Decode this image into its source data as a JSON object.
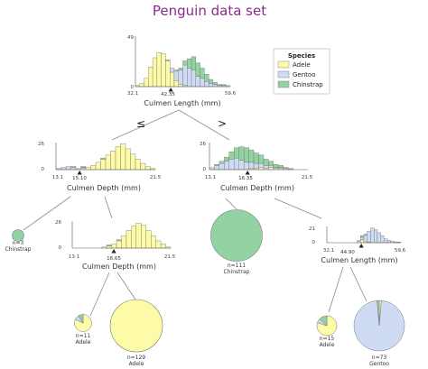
{
  "title": "Penguin data set",
  "colors": {
    "Adele": "#fdfaa8",
    "Gentoo": "#cfdbf3",
    "Chinstrap": "#93d3a3",
    "edge": "#8a8a8a",
    "axis": "#555555",
    "split_marker": "#222222",
    "title": "#8e2a8e"
  },
  "legend": {
    "title": "Species",
    "items": [
      "Adele",
      "Gentoo",
      "Chinstrap"
    ]
  },
  "edge_labels": {
    "left": "≤",
    "right": ">"
  },
  "root": {
    "feature": "Culmen Length (mm)",
    "ymax": "49",
    "ymin": "0",
    "xmin": "32.1",
    "split": "42.35",
    "xmax": "59.6"
  },
  "left": {
    "feature": "Culmen Depth (mm)",
    "ymax": "26",
    "ymin": "0",
    "xmin": "13.1",
    "split": "15.10",
    "xmax": "21.5"
  },
  "right": {
    "feature": "Culmen Depth (mm)",
    "ymax": "26",
    "ymin": "0",
    "xmin": "13.1",
    "split": "16.35",
    "xmax": "21.5"
  },
  "left_right": {
    "feature": "Culmen Depth (mm)",
    "ymax": "26",
    "ymin": "0",
    "xmin": "13.1",
    "split": "16.65",
    "xmax": "21.5"
  },
  "right_right": {
    "feature": "Culmen Length (mm)",
    "ymax": "21",
    "ymin": "0",
    "xmin": "32.1",
    "split": "44.90",
    "xmax": "59.6"
  },
  "leaves": {
    "chinstrap_small": {
      "n": "n=3",
      "label": "Chinstrap"
    },
    "chinstrap_big": {
      "n": "n=111",
      "label": "Chinstrap"
    },
    "adele_small": {
      "n": "n=11",
      "label": "Adele"
    },
    "adele_big": {
      "n": "n=129",
      "label": "Adele"
    },
    "adele_mix": {
      "n": "n=15",
      "label": "Adele"
    },
    "gentoo": {
      "n": "n=73",
      "label": "Gentoo"
    }
  },
  "chart_data": [
    {
      "type": "bar",
      "node": "root",
      "xlabel": "Culmen Length (mm)",
      "xlim": [
        32.1,
        59.6
      ],
      "ylim": [
        0,
        49
      ],
      "split": 42.35,
      "bin_width": 1.25,
      "series": [
        {
          "name": "Adele",
          "values": [
            1,
            3,
            8,
            19,
            28,
            33,
            32,
            25,
            14,
            6,
            2,
            1,
            0,
            0,
            0,
            0,
            0,
            0,
            0,
            0,
            0,
            0
          ]
        },
        {
          "name": "Gentoo",
          "values": [
            0,
            0,
            0,
            0,
            0,
            0,
            0,
            1,
            4,
            9,
            14,
            20,
            18,
            16,
            10,
            8,
            5,
            3,
            2,
            1,
            1,
            1
          ]
        },
        {
          "name": "Chinstrap",
          "values": [
            0,
            0,
            0,
            0,
            0,
            0,
            0,
            0,
            0,
            1,
            2,
            4,
            9,
            13,
            13,
            10,
            7,
            4,
            2,
            1,
            1,
            0
          ]
        }
      ]
    },
    {
      "type": "bar",
      "node": "left",
      "xlabel": "Culmen Depth (mm)",
      "xlim": [
        13.1,
        21.5
      ],
      "ylim": [
        0,
        26
      ],
      "split": 15.1,
      "bin_width": 0.42,
      "series": [
        {
          "name": "Adele",
          "values": [
            0,
            0,
            0,
            0,
            0,
            1,
            2,
            4,
            7,
            10,
            14,
            18,
            22,
            25,
            20,
            15,
            10,
            6,
            3,
            1
          ]
        },
        {
          "name": "Gentoo",
          "values": [
            1,
            2,
            3,
            2,
            1,
            1,
            0,
            0,
            0,
            0,
            0,
            0,
            0,
            0,
            0,
            0,
            0,
            0,
            0,
            0
          ]
        },
        {
          "name": "Chinstrap",
          "values": [
            0,
            0,
            0,
            1,
            0,
            1,
            0,
            0,
            0,
            1,
            0,
            0,
            0,
            0,
            0,
            0,
            0,
            0,
            0,
            0
          ]
        }
      ]
    },
    {
      "type": "bar",
      "node": "right",
      "xlabel": "Culmen Depth (mm)",
      "xlim": [
        13.1,
        21.5
      ],
      "ylim": [
        0,
        26
      ],
      "split": 16.35,
      "bin_width": 0.42,
      "series": [
        {
          "name": "Adele",
          "values": [
            0,
            0,
            0,
            0,
            0,
            0,
            0,
            0,
            1,
            1,
            2,
            1,
            2,
            1,
            1,
            0,
            0,
            0,
            0,
            0
          ]
        },
        {
          "name": "Gentoo",
          "values": [
            2,
            4,
            6,
            8,
            10,
            11,
            9,
            7,
            6,
            5,
            4,
            3,
            2,
            1,
            1,
            1,
            0,
            0,
            0,
            0
          ]
        },
        {
          "name": "Chinstrap",
          "values": [
            0,
            1,
            2,
            4,
            7,
            10,
            13,
            14,
            12,
            10,
            8,
            6,
            4,
            3,
            2,
            1,
            1,
            0,
            0,
            0
          ]
        }
      ]
    },
    {
      "type": "bar",
      "node": "left_right",
      "xlabel": "Culmen Depth (mm)",
      "xlim": [
        13.1,
        21.5
      ],
      "ylim": [
        0,
        26
      ],
      "split": 16.65,
      "bin_width": 0.42,
      "series": [
        {
          "name": "Adele",
          "values": [
            0,
            0,
            0,
            0,
            0,
            0,
            1,
            2,
            4,
            7,
            12,
            17,
            21,
            24,
            22,
            17,
            12,
            7,
            4,
            1
          ]
        },
        {
          "name": "Gentoo",
          "values": [
            0,
            0,
            0,
            0,
            0,
            0,
            0,
            0,
            0,
            0,
            0,
            0,
            0,
            0,
            0,
            0,
            0,
            0,
            0,
            0
          ]
        },
        {
          "name": "Chinstrap",
          "values": [
            0,
            0,
            0,
            0,
            0,
            0,
            0,
            1,
            0,
            1,
            0,
            0,
            0,
            0,
            0,
            0,
            0,
            0,
            0,
            0
          ]
        }
      ]
    },
    {
      "type": "bar",
      "node": "right_right",
      "xlabel": "Culmen Length (mm)",
      "xlim": [
        32.1,
        59.6
      ],
      "ylim": [
        0,
        21
      ],
      "split": 44.9,
      "bin_width": 1.25,
      "series": [
        {
          "name": "Adele",
          "values": [
            0,
            0,
            0,
            0,
            0,
            0,
            0,
            0,
            0,
            2,
            4,
            2,
            1,
            0,
            0,
            0,
            0,
            0,
            0,
            0,
            0,
            0
          ]
        },
        {
          "name": "Gentoo",
          "values": [
            0,
            0,
            0,
            0,
            0,
            0,
            0,
            0,
            0,
            1,
            3,
            8,
            14,
            19,
            17,
            13,
            9,
            5,
            3,
            2,
            1,
            1
          ]
        },
        {
          "name": "Chinstrap",
          "values": [
            0,
            0,
            0,
            0,
            0,
            0,
            0,
            0,
            0,
            0,
            2,
            1,
            0,
            0,
            0,
            0,
            0,
            0,
            0,
            0,
            0,
            0
          ]
        }
      ]
    },
    {
      "type": "pie",
      "node": "leaf-chinstrap-small",
      "n": 3,
      "slices": [
        {
          "name": "Adele",
          "value": 0
        },
        {
          "name": "Gentoo",
          "value": 0
        },
        {
          "name": "Chinstrap",
          "value": 3
        }
      ]
    },
    {
      "type": "pie",
      "node": "leaf-chinstrap-big",
      "n": 111,
      "slices": [
        {
          "name": "Adele",
          "value": 0
        },
        {
          "name": "Gentoo",
          "value": 0
        },
        {
          "name": "Chinstrap",
          "value": 111
        }
      ]
    },
    {
      "type": "pie",
      "node": "leaf-adele-small",
      "n": 11,
      "slices": [
        {
          "name": "Adele",
          "value": 9
        },
        {
          "name": "Gentoo",
          "value": 1
        },
        {
          "name": "Chinstrap",
          "value": 1
        }
      ]
    },
    {
      "type": "pie",
      "node": "leaf-adele-big",
      "n": 129,
      "slices": [
        {
          "name": "Adele",
          "value": 129
        },
        {
          "name": "Gentoo",
          "value": 0
        },
        {
          "name": "Chinstrap",
          "value": 0
        }
      ]
    },
    {
      "type": "pie",
      "node": "leaf-adele-mix",
      "n": 15,
      "slices": [
        {
          "name": "Adele",
          "value": 12
        },
        {
          "name": "Gentoo",
          "value": 1
        },
        {
          "name": "Chinstrap",
          "value": 2
        }
      ]
    },
    {
      "type": "pie",
      "node": "leaf-gentoo",
      "n": 73,
      "slices": [
        {
          "name": "Adele",
          "value": 1
        },
        {
          "name": "Gentoo",
          "value": 71
        },
        {
          "name": "Chinstrap",
          "value": 1
        }
      ]
    }
  ]
}
